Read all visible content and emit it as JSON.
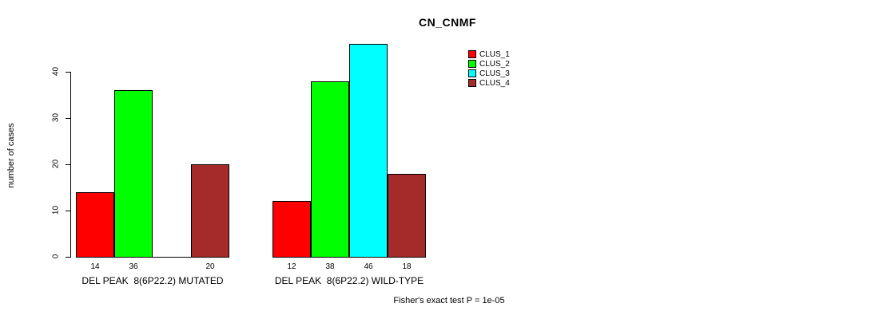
{
  "chart_data": {
    "type": "bar",
    "title": "CN_CNMF",
    "ylabel": "number of cases",
    "ylim": [
      0,
      46
    ],
    "yticks": [
      0,
      10,
      20,
      30,
      40
    ],
    "grid": false,
    "legend_position": "top-right",
    "series": [
      {
        "name": "CLUS_1",
        "color": "#FF0000"
      },
      {
        "name": "CLUS_2",
        "color": "#00FF00"
      },
      {
        "name": "CLUS_3",
        "color": "#00FFFF"
      },
      {
        "name": "CLUS_4",
        "color": "#A52A2A"
      }
    ],
    "groups": [
      {
        "label": "DEL PEAK  8(6P22.2) MUTATED",
        "values": [
          14,
          36,
          0,
          20
        ],
        "bar_labels": [
          "14",
          "36",
          "",
          "20"
        ]
      },
      {
        "label": "DEL PEAK  8(6P22.2) WILD-TYPE",
        "values": [
          12,
          38,
          46,
          18
        ],
        "bar_labels": [
          "12",
          "38",
          "46",
          "18"
        ]
      }
    ],
    "annotation": "Fisher's exact test P = 1e-05"
  }
}
